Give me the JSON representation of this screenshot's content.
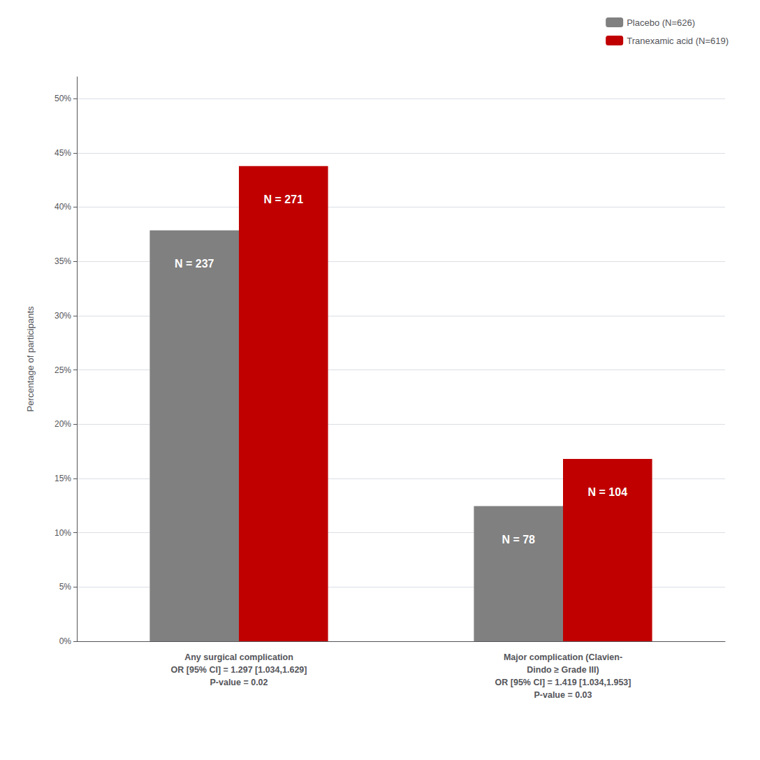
{
  "chart_data": {
    "type": "bar",
    "y_label": "Percentage of participants",
    "categories": [
      "Any surgical complication\nOR [95% CI] = 1.297 [1.034,1.629]\nP-value = 0.02",
      "Major complication (Clavien-\nDindo ≥ Grade III)\nOR [95% CI] = 1.419 [1.034,1.953]\nP-value = 0.03"
    ],
    "series": [
      {
        "name": "Placebo (N=626)",
        "color": "#808080",
        "values": [
          37.86,
          12.46
        ],
        "annotations": [
          "N = 237",
          "N = 78"
        ]
      },
      {
        "name": "Tranexamic acid (N=619)",
        "color": "#C00000",
        "values": [
          43.78,
          16.8
        ],
        "annotations": [
          "N = 271",
          "N = 104"
        ]
      }
    ],
    "ylim": [
      0,
      52
    ],
    "yticks": [
      {
        "value": 0,
        "label": "0%"
      },
      {
        "value": 5,
        "label": "5%"
      },
      {
        "value": 10,
        "label": "10%"
      },
      {
        "value": 15,
        "label": "15%"
      },
      {
        "value": 20,
        "label": "20%"
      },
      {
        "value": 25,
        "label": "25%"
      },
      {
        "value": 30,
        "label": "30%"
      },
      {
        "value": 35,
        "label": "35%"
      },
      {
        "value": 40,
        "label": "40%"
      },
      {
        "value": 45,
        "label": "45%"
      },
      {
        "value": 50,
        "label": "50%"
      }
    ],
    "grid": true,
    "legend": "upper right"
  }
}
